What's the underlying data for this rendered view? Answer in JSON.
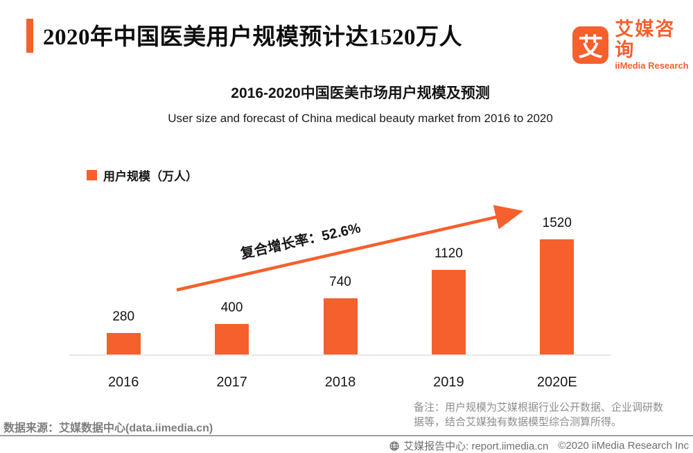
{
  "theme": {
    "accent": "#F5602D",
    "axis_line": "#e8e8e8",
    "footer_gray": "#828282"
  },
  "header": {
    "title": "2020年中国医美用户规模预计达1520万人"
  },
  "logo": {
    "glyph": "艾",
    "name_cn": "艾媒咨询",
    "name_en": "iiMedia Research"
  },
  "chart_data": {
    "type": "bar",
    "title": "2016-2020中国医美市场用户规模及预测",
    "subtitle": "User size and forecast of China medical beauty market from 2016 to 2020",
    "legend": "用户规模（万人）",
    "legend_position": "top-left",
    "categories": [
      "2016",
      "2017",
      "2018",
      "2019",
      "2020E"
    ],
    "values": [
      280,
      400,
      740,
      1120,
      1520
    ],
    "bar_color": "#F5602D",
    "value_labels": true,
    "grid": false,
    "ylim": [
      0,
      1600
    ],
    "annotation": "复合增长率：52.6%"
  },
  "footer": {
    "source": "数据来源：艾媒数据中心(data.iimedia.cn)",
    "note": "备注：用户规模为艾媒根据行业公开数据、企业调研数据等，结合艾媒独有数据模型综合测算所得。",
    "report_center": "艾媒报告中心: report.iimedia.cn",
    "copyright": "©2020  iiMedia Research Inc"
  }
}
